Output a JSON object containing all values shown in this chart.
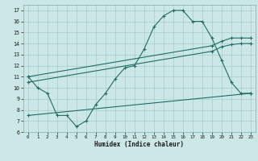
{
  "xlabel": "Humidex (Indice chaleur)",
  "bg_color": "#cce8e6",
  "grid_color": "#aaccca",
  "line_color": "#1a6e66",
  "xlim": [
    -0.5,
    23.5
  ],
  "ylim": [
    6,
    17.5
  ],
  "xticks": [
    0,
    1,
    2,
    3,
    4,
    5,
    6,
    7,
    8,
    9,
    10,
    11,
    12,
    13,
    14,
    15,
    16,
    17,
    18,
    19,
    20,
    21,
    22,
    23
  ],
  "yticks": [
    6,
    7,
    8,
    9,
    10,
    11,
    12,
    13,
    14,
    15,
    16,
    17
  ],
  "series1_x": [
    0,
    1,
    2,
    3,
    4,
    5,
    6,
    7,
    8,
    9,
    10,
    11,
    12,
    13,
    14,
    15,
    16,
    17,
    18,
    19,
    20,
    21,
    22,
    23
  ],
  "series1_y": [
    11,
    10,
    9.5,
    7.5,
    7.5,
    6.5,
    7,
    8.5,
    9.5,
    10.8,
    11.8,
    12,
    13.5,
    15.5,
    16.5,
    17,
    17,
    16,
    16,
    14.5,
    12.5,
    10.5,
    9.5,
    9.5
  ],
  "series2_x": [
    0,
    19,
    20,
    21,
    22,
    23
  ],
  "series2_y": [
    11,
    13.8,
    14.2,
    14.5,
    14.5,
    14.5
  ],
  "series3_x": [
    0,
    19,
    20,
    21,
    22,
    23
  ],
  "series3_y": [
    10.5,
    13.3,
    13.7,
    13.9,
    14.0,
    14.0
  ],
  "series4_x": [
    0,
    23
  ],
  "series4_y": [
    7.5,
    9.5
  ]
}
